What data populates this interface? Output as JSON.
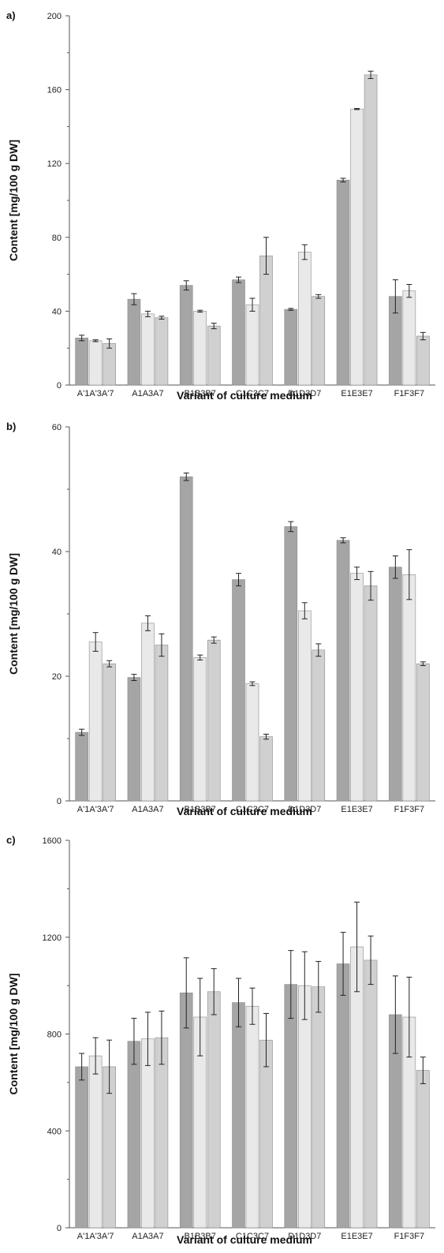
{
  "chart_data": [
    {
      "type": "bar",
      "panel_label": "a)",
      "xlabel": "Variant of culture medium",
      "ylabel": "Content [mg/100 g DW]",
      "ylim": [
        0,
        200
      ],
      "yticks": [
        0,
        40,
        80,
        120,
        160,
        200
      ],
      "categories": [
        "A'1A'3A'7",
        "A1A3A7",
        "B1B3B7",
        "C1C3C7",
        "D1D3D7",
        "E1E3E7",
        "F1F3F7"
      ],
      "series": [
        {
          "values": [
            25.5,
            46.5,
            54,
            57,
            41,
            111,
            48
          ],
          "errors": [
            1.5,
            3,
            2.5,
            1.5,
            0.5,
            1,
            9
          ],
          "color": "#a5a5a5"
        },
        {
          "values": [
            24,
            38.5,
            40,
            43.5,
            72,
            149.5,
            51
          ],
          "errors": [
            0.5,
            1.5,
            0.5,
            3.5,
            4,
            0.3,
            3.5
          ],
          "color": "#e9e9e9"
        },
        {
          "values": [
            22.5,
            36.5,
            32,
            70,
            48,
            168,
            26.5
          ],
          "errors": [
            2.5,
            0.8,
            1.5,
            10,
            1,
            2,
            2
          ],
          "color": "#d0d0d0"
        }
      ]
    },
    {
      "type": "bar",
      "panel_label": "b)",
      "xlabel": "Variant of culture medium",
      "ylabel": "Content [mg/100 g DW]",
      "ylim": [
        0,
        60
      ],
      "yticks": [
        0,
        20,
        40,
        60
      ],
      "categories": [
        "A'1A'3A'7",
        "A1A3A7",
        "B1B3B7",
        "C1C3C7",
        "D1D3D7",
        "E1E3E7",
        "F1F3F7"
      ],
      "series": [
        {
          "values": [
            11,
            19.8,
            52,
            35.5,
            44,
            41.8,
            37.5
          ],
          "errors": [
            0.5,
            0.5,
            0.6,
            1,
            0.8,
            0.4,
            1.8
          ],
          "color": "#a5a5a5"
        },
        {
          "values": [
            25.5,
            28.5,
            23,
            18.8,
            30.5,
            36.5,
            36.3
          ],
          "errors": [
            1.5,
            1.2,
            0.4,
            0.3,
            1.3,
            1,
            4
          ],
          "color": "#e9e9e9"
        },
        {
          "values": [
            22,
            25,
            25.8,
            10.3,
            24.2,
            34.5,
            22
          ],
          "errors": [
            0.5,
            1.8,
            0.5,
            0.4,
            1,
            2.3,
            0.3
          ],
          "color": "#d0d0d0"
        }
      ]
    },
    {
      "type": "bar",
      "panel_label": "c)",
      "xlabel": "Variant of culture medium",
      "ylabel": "Content [mg/100 g DW]",
      "ylim": [
        0,
        1600
      ],
      "yticks": [
        0,
        400,
        800,
        1200,
        1600
      ],
      "categories": [
        "A'1A'3A'7",
        "A1A3A7",
        "B1B3B7",
        "C1C3C7",
        "D1D3D7",
        "E1E3E7",
        "F1F3F7"
      ],
      "series": [
        {
          "values": [
            665,
            770,
            970,
            930,
            1005,
            1090,
            880
          ],
          "errors": [
            55,
            95,
            145,
            100,
            140,
            130,
            160
          ],
          "color": "#a5a5a5"
        },
        {
          "values": [
            710,
            780,
            870,
            915,
            1000,
            1160,
            870
          ],
          "errors": [
            75,
            110,
            160,
            75,
            140,
            185,
            165
          ],
          "color": "#e9e9e9"
        },
        {
          "values": [
            665,
            785,
            975,
            775,
            995,
            1105,
            650
          ],
          "errors": [
            110,
            110,
            95,
            110,
            105,
            100,
            55
          ],
          "color": "#d0d0d0"
        }
      ]
    }
  ]
}
